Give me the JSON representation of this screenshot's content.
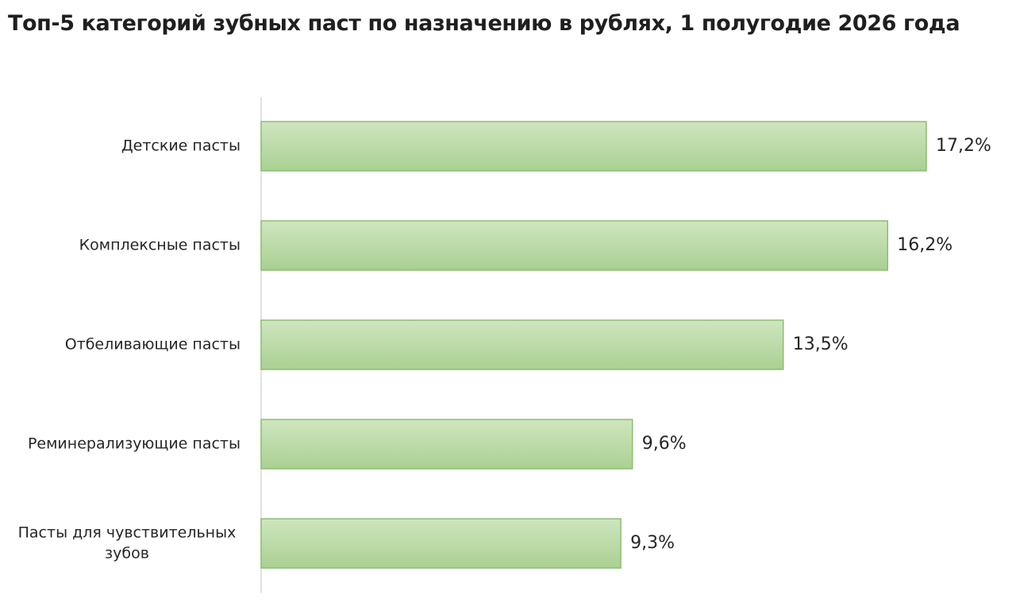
{
  "chart_data": {
    "type": "bar",
    "orientation": "horizontal",
    "title": "Топ-5 категорий зубных паст по назначению в рублях, 1 полугодие 2026 года",
    "categories": [
      "Детские пасты",
      "Комплексные пасты",
      "Отбеливающие пасты",
      "Реминерализующие пасты",
      "Пасты для чувствительных зубов"
    ],
    "category_label_lines": [
      [
        "Детские пасты"
      ],
      [
        "Комплексные пасты"
      ],
      [
        "Отбеливающие пасты"
      ],
      [
        "Реминерализующие пасты"
      ],
      [
        "Пасты для чувствительных",
        "зубов"
      ]
    ],
    "values": [
      17.2,
      16.2,
      13.5,
      9.6,
      9.3
    ],
    "value_labels": [
      "17,2%",
      "16,2%",
      "13,5%",
      "9,6%",
      "9,3%"
    ],
    "xlim": [
      0,
      17.2
    ],
    "grid": false,
    "legend": "none",
    "colors": {
      "bar_fill_light": "#c9e2b8",
      "bar_fill_dark": "#a8cf90",
      "bar_border": "#8cbd72",
      "axis": "#d9d9d9"
    }
  }
}
